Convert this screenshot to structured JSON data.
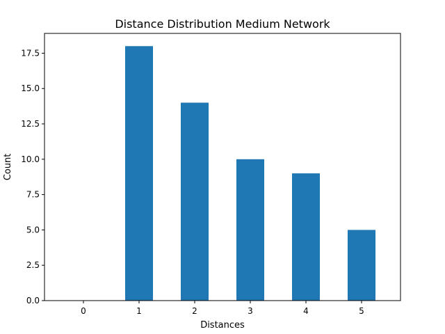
{
  "chart_data": {
    "type": "bar",
    "title": "Distance Distribution Medium Network",
    "xlabel": "Distances",
    "ylabel": "Count",
    "categories": [
      "0",
      "1",
      "2",
      "3",
      "4",
      "5"
    ],
    "values": [
      0,
      18,
      14,
      10,
      9,
      5
    ],
    "ylim": [
      0,
      18.9
    ],
    "yticks": [
      "0.0",
      "2.5",
      "5.0",
      "7.5",
      "10.0",
      "12.5",
      "15.0",
      "17.5"
    ],
    "bar_color": "#1f77b4",
    "grid": false,
    "legend": "none"
  }
}
